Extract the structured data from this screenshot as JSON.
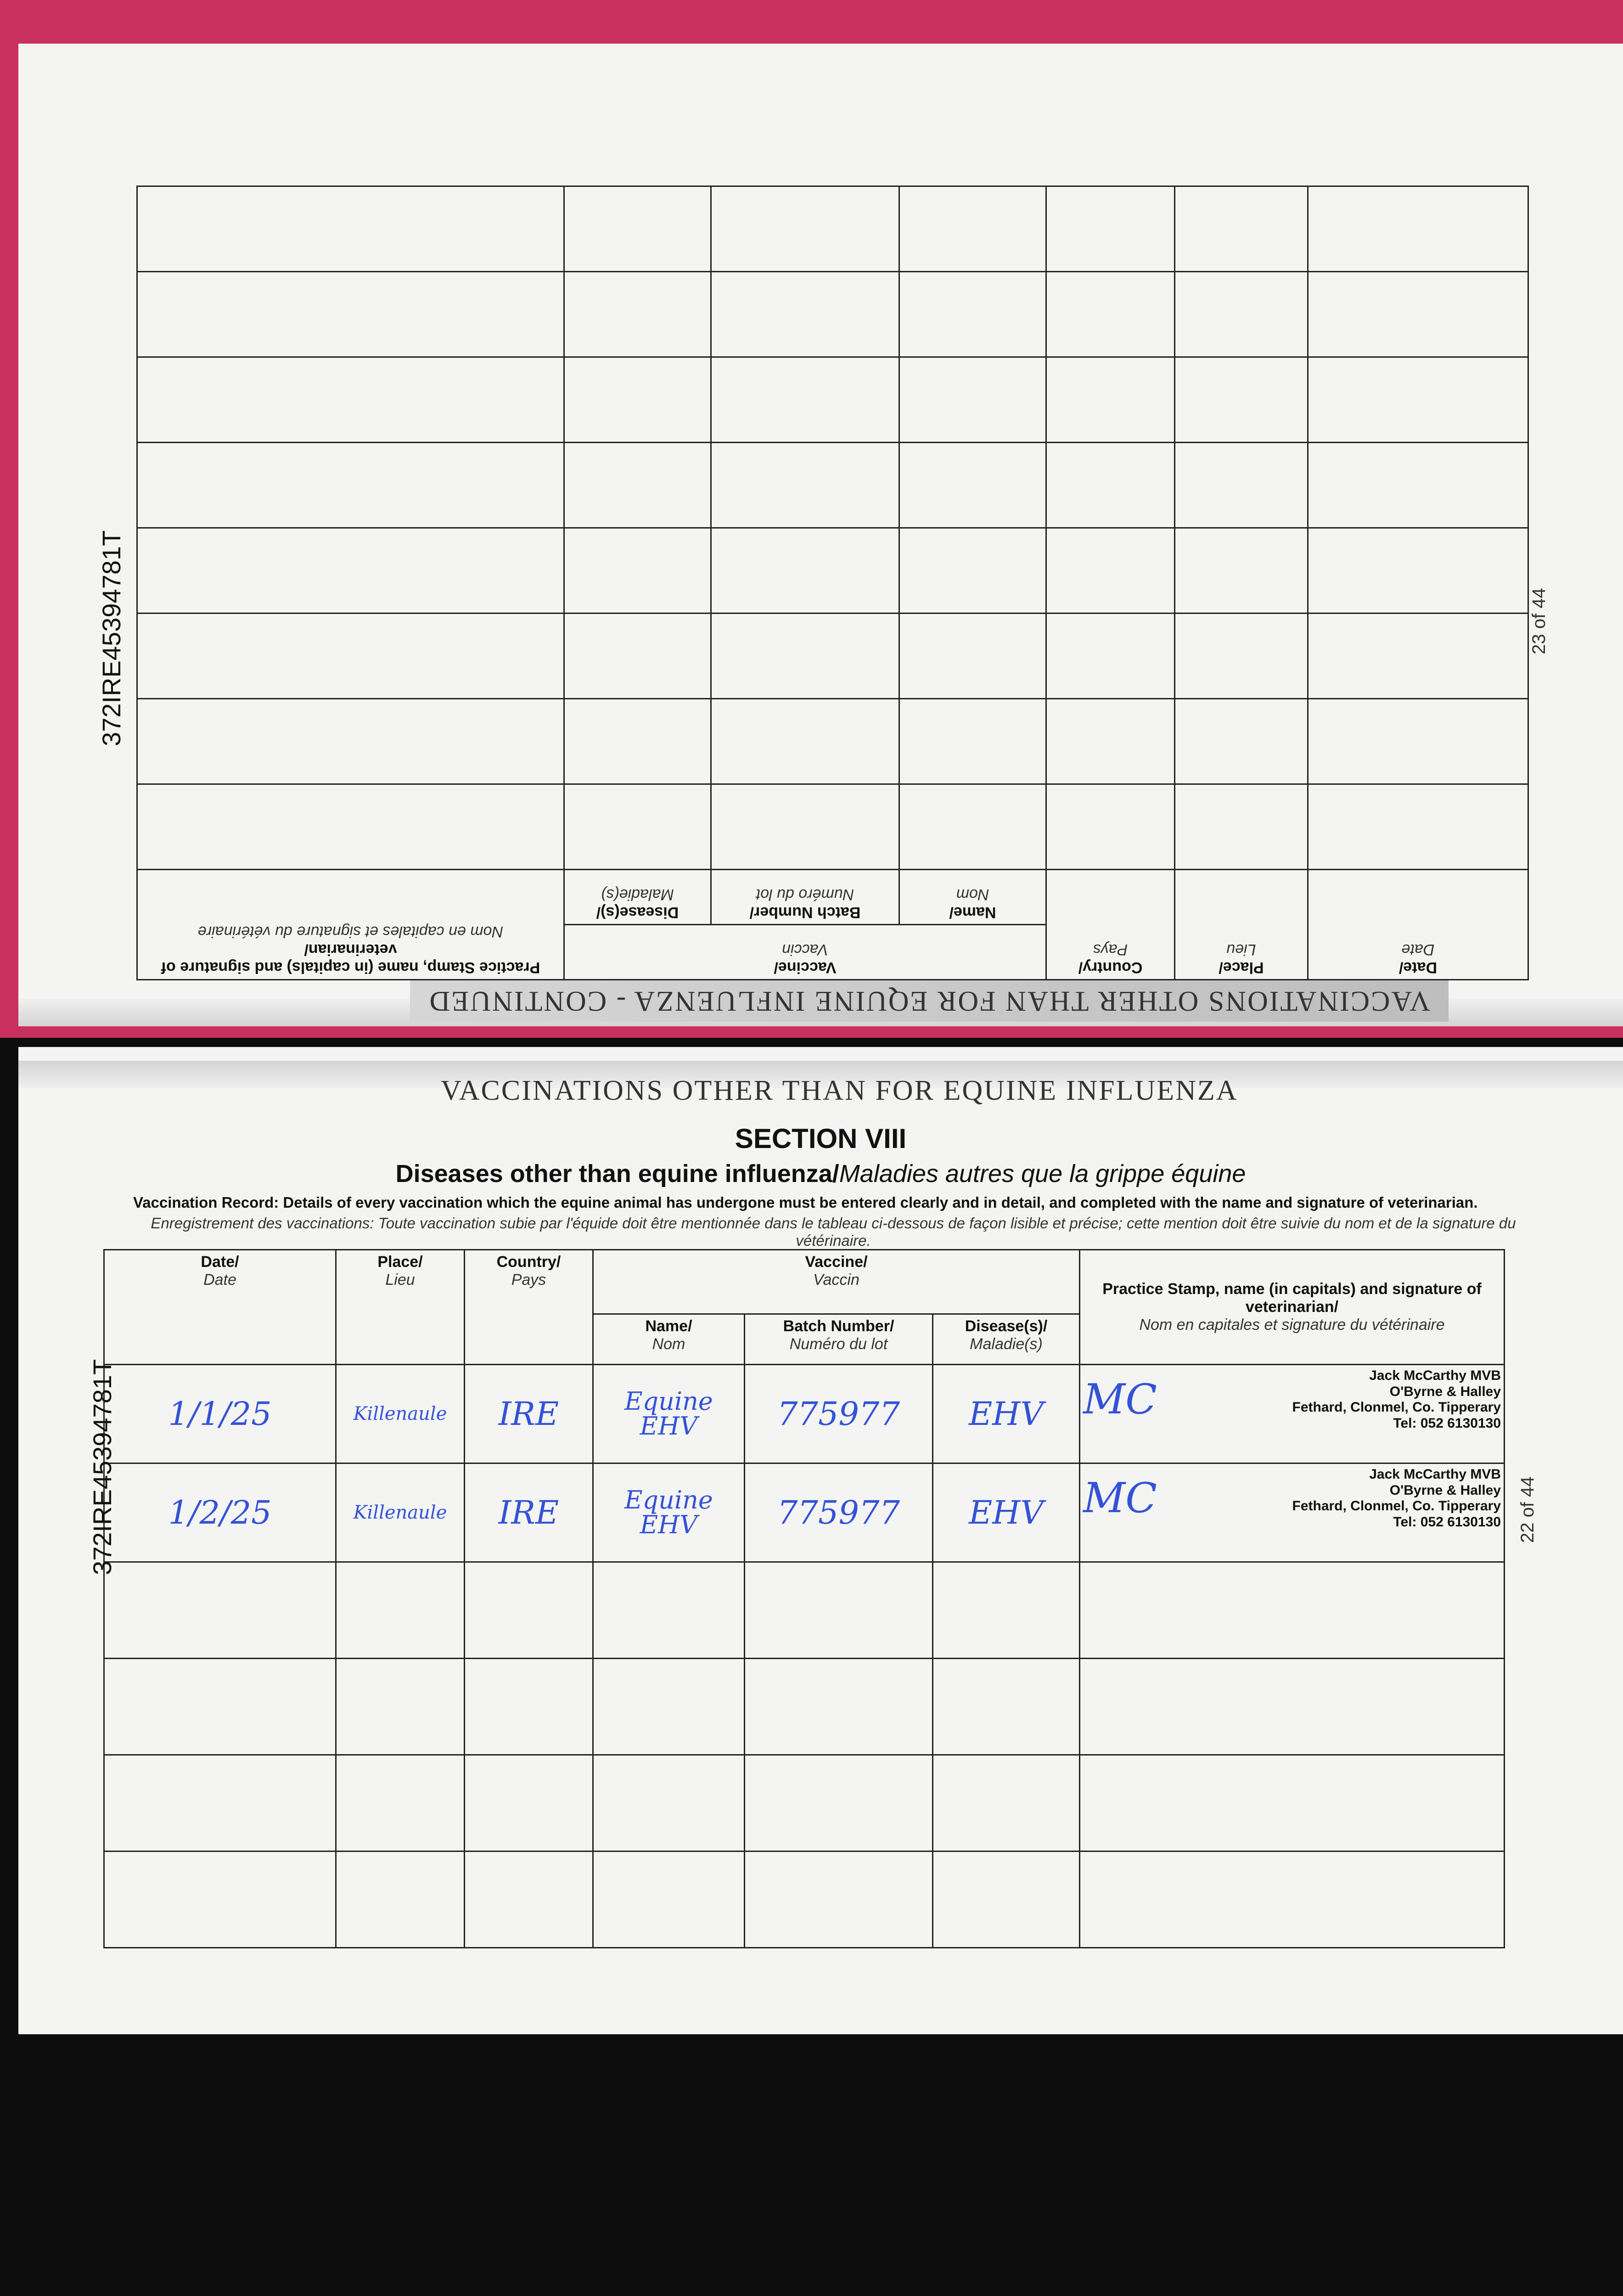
{
  "document_id": "372IRE45394781T",
  "upper_page": {
    "banner": "VACCINATIONS OTHER THAN FOR EQUINE INFLUENZA - CONTINUED",
    "page_number": "23 of 44",
    "headers": {
      "date": "Date/",
      "date_fr": "Date",
      "place": "Place/",
      "place_fr": "Lieu",
      "country": "Country/",
      "country_fr": "Pays",
      "vaccine": "Vaccine/",
      "vaccine_fr": "Vaccin",
      "name": "Name/",
      "name_fr": "Nom",
      "batch": "Batch Number/",
      "batch_fr": "Numéro du lot",
      "disease": "Disease(s)/",
      "disease_fr": "Maladie(s)",
      "stamp": "Practice Stamp, name (in capitals) and signature of veterinarian/",
      "stamp_fr": "Nom en capitales et signature du vétérinaire"
    }
  },
  "lower_page": {
    "banner": "VACCINATIONS OTHER THAN FOR EQUINE INFLUENZA",
    "section": "SECTION VIII",
    "subtitle": "Diseases other than equine influenza/",
    "subtitle_fr": "Maladies autres que la grippe équine",
    "instructions": "Vaccination Record: Details of every vaccination which the equine animal has undergone must be entered clearly and in detail, and completed with the name and signature of veterinarian.",
    "instructions_fr": "Enregistrement des vaccinations: Toute vaccination subie par l'équide doit être mentionnée dans le tableau ci-dessous de façon lisible et précise; cette mention doit être suivie du nom et de la signature du vétérinaire.",
    "page_number": "22 of 44",
    "headers": {
      "date": "Date/",
      "date_fr": "Date",
      "place": "Place/",
      "place_fr": "Lieu",
      "country": "Country/",
      "country_fr": "Pays",
      "vaccine": "Vaccine/",
      "vaccine_fr": "Vaccin",
      "name": "Name/",
      "name_fr": "Nom",
      "batch": "Batch Number/",
      "batch_fr": "Numéro du lot",
      "disease": "Disease(s)/",
      "disease_fr": "Maladie(s)",
      "stamp": "Practice Stamp, name (in capitals) and signature of veterinarian/",
      "stamp_fr": "Nom en capitales et signature du vétérinaire"
    },
    "rows": [
      {
        "date": "1/1/25",
        "place": "Killenaule",
        "country": "IRE",
        "name": "Equine EHV",
        "batch": "775977",
        "disease": "EHV",
        "signature": "MC",
        "stamp": [
          "Jack McCarthy MVB",
          "O'Byrne & Halley",
          "Fethard, Clonmel, Co. Tipperary",
          "Tel: 052 6130130"
        ]
      },
      {
        "date": "1/2/25",
        "place": "Killenaule",
        "country": "IRE",
        "name": "Equine EHV",
        "batch": "775977",
        "disease": "EHV",
        "signature": "MC",
        "stamp": [
          "Jack McCarthy MVB",
          "O'Byrne & Halley",
          "Fethard, Clonmel, Co. Tipperary",
          "Tel: 052 6130130"
        ]
      }
    ]
  }
}
